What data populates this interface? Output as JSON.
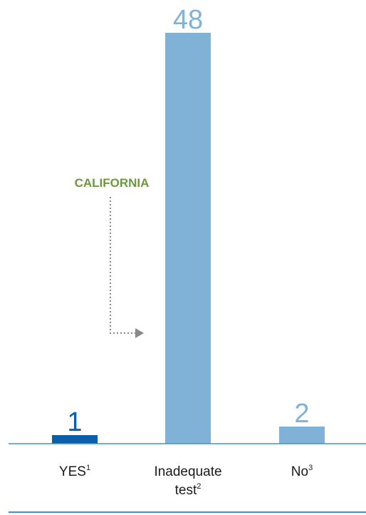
{
  "chart_data": {
    "type": "bar",
    "categories": [
      {
        "label": "YES",
        "sup": "1",
        "lines": [
          "YES"
        ]
      },
      {
        "label": "Inadequate test",
        "sup": "2",
        "lines": [
          "Inadequate",
          "test"
        ]
      },
      {
        "label": "No",
        "sup": "3",
        "lines": [
          "No"
        ]
      }
    ],
    "values": [
      1,
      48,
      2
    ],
    "value_labels": [
      "1",
      "48",
      "2"
    ],
    "bar_colors": [
      "#0a5fa8",
      "#7fb2d6",
      "#7fb2d6"
    ],
    "value_label_colors": [
      "#0a5fa8",
      "#7fb2d6",
      "#7fb2d6"
    ],
    "annotation": {
      "text": "CALIFORNIA",
      "points_to": "Inadequate test",
      "color": "#6a9a3a",
      "arrow_color": "#8a8a8a"
    },
    "axis_color": "#4a90c4",
    "grid": false,
    "legend": "none",
    "title": "",
    "xlabel": "",
    "ylabel": "",
    "ylim": [
      0,
      48
    ]
  }
}
